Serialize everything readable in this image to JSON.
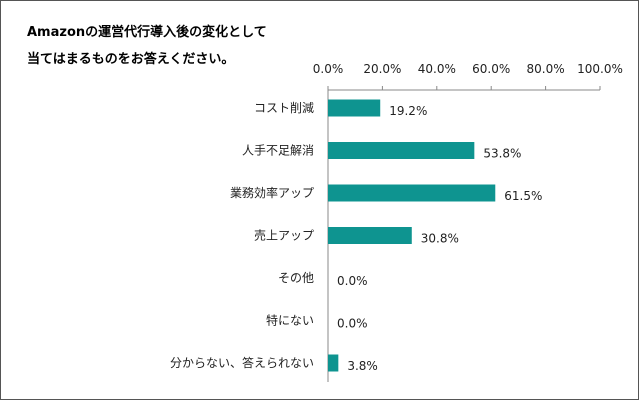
{
  "chart_data": {
    "type": "bar",
    "orientation": "horizontal",
    "title_lines": [
      "Amazonの運営代行導入後の変化として",
      "当てはまるものをお答えください。"
    ],
    "categories": [
      "コスト削減",
      "人手不足解消",
      "業務効率アップ",
      "売上アップ",
      "その他",
      "特にない",
      "分からない、答えられない"
    ],
    "values": [
      19.2,
      53.8,
      61.5,
      30.8,
      0.0,
      0.0,
      3.8
    ],
    "value_labels": [
      "19.2%",
      "53.8%",
      "61.5%",
      "30.8%",
      "0.0%",
      "0.0%",
      "3.8%"
    ],
    "xlim": [
      0,
      100
    ],
    "x_ticks": [
      0,
      20,
      40,
      60,
      80,
      100
    ],
    "x_tick_labels": [
      "0.0%",
      "20.0%",
      "40.0%",
      "60.0%",
      "80.0%",
      "100.0%"
    ],
    "x_axis_position": "top",
    "grid": false,
    "bar_color": "#0e9490"
  }
}
